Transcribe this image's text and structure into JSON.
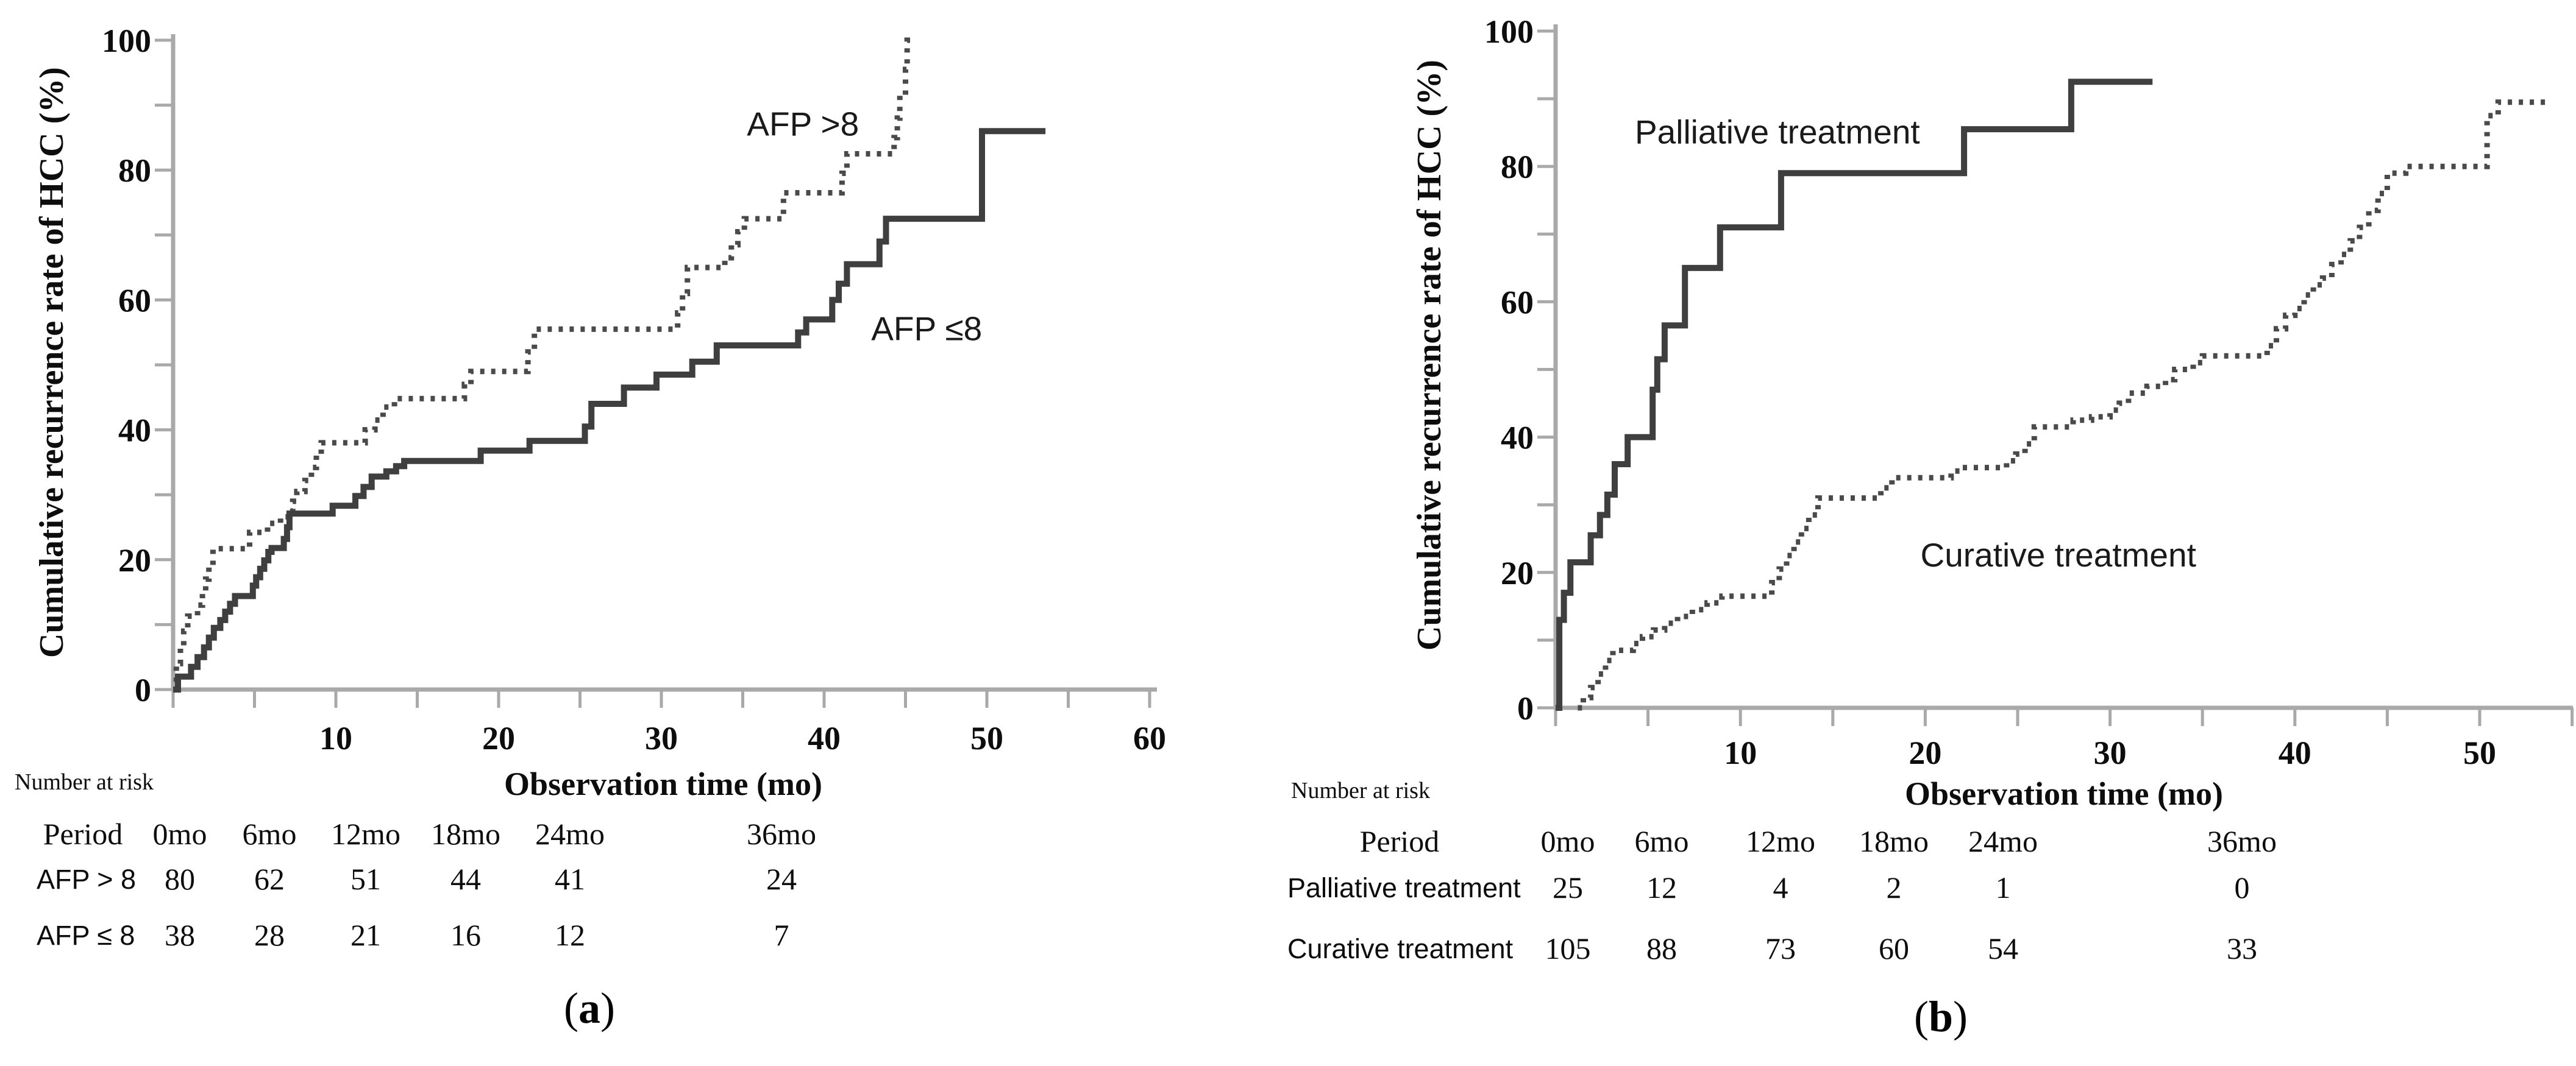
{
  "chart_data": [
    {
      "type": "line",
      "subtype": "kaplan-meier-step",
      "panel": "a",
      "ylabel": "Cumulative recurrence rate of HCC (%)",
      "xlabel": "Observation time (mo)",
      "xlim": [
        0,
        60.5
      ],
      "ylim": [
        0,
        100
      ],
      "x_ticks": [
        10,
        20,
        30,
        40,
        50,
        60
      ],
      "x_minor_ticks": [
        0,
        5,
        15,
        25,
        35,
        45,
        55
      ],
      "y_ticks": [
        0,
        20,
        40,
        60,
        80,
        100
      ],
      "y_minor_ticks": [
        10,
        30,
        50,
        70,
        90
      ],
      "grid": false,
      "legend": "inline-labels",
      "axis_color": "#a9a9a9",
      "series": [
        {
          "name": "AFP >8",
          "style": "dotted",
          "color": "#4a4a4a",
          "points": [
            [
              0,
              0
            ],
            [
              0.2,
              4
            ],
            [
              0.45,
              6.5
            ],
            [
              0.65,
              9
            ],
            [
              0.9,
              11.3
            ],
            [
              1.5,
              13
            ],
            [
              1.8,
              15
            ],
            [
              2,
              17
            ],
            [
              2.2,
              19
            ],
            [
              2.45,
              21.7
            ],
            [
              4.7,
              24.2
            ],
            [
              5.8,
              25.6
            ],
            [
              6.6,
              26.6
            ],
            [
              7.1,
              27.5
            ],
            [
              7.35,
              29
            ],
            [
              7.6,
              30.5
            ],
            [
              8.1,
              32.2
            ],
            [
              8.5,
              34.2
            ],
            [
              8.8,
              36.2
            ],
            [
              9.1,
              38
            ],
            [
              11.8,
              40
            ],
            [
              12.4,
              41.5
            ],
            [
              12.9,
              43.5
            ],
            [
              13.6,
              44.8
            ],
            [
              17.9,
              47
            ],
            [
              18.3,
              49
            ],
            [
              21.8,
              52
            ],
            [
              22.2,
              55.5
            ],
            [
              31,
              58
            ],
            [
              31.3,
              61
            ],
            [
              31.6,
              65
            ],
            [
              33.9,
              66.5
            ],
            [
              34.3,
              68.5
            ],
            [
              34.7,
              70.5
            ],
            [
              35.1,
              72.5
            ],
            [
              37.5,
              76.5
            ],
            [
              41.1,
              79.5
            ],
            [
              41.4,
              82.5
            ],
            [
              44.3,
              85
            ],
            [
              44.5,
              88
            ],
            [
              44.65,
              91.5
            ],
            [
              45,
              95.5
            ],
            [
              45.1,
              100
            ],
            [
              45.5,
              100
            ]
          ]
        },
        {
          "name": "AFP ≤8",
          "style": "solid",
          "color": "#3f3f3f",
          "points": [
            [
              0,
              0
            ],
            [
              0.3,
              2
            ],
            [
              1.1,
              3.5
            ],
            [
              1.5,
              5
            ],
            [
              1.9,
              6.5
            ],
            [
              2.2,
              8
            ],
            [
              2.5,
              9.5
            ],
            [
              2.9,
              10.7
            ],
            [
              3.2,
              12
            ],
            [
              3.5,
              13.2
            ],
            [
              3.8,
              14.4
            ],
            [
              4.9,
              16
            ],
            [
              5.1,
              17.3
            ],
            [
              5.35,
              18.6
            ],
            [
              5.6,
              19.9
            ],
            [
              5.85,
              21.2
            ],
            [
              6.05,
              21.8
            ],
            [
              6.8,
              23.2
            ],
            [
              7,
              25
            ],
            [
              7.15,
              27.1
            ],
            [
              9.8,
              28.3
            ],
            [
              11.2,
              29.8
            ],
            [
              11.7,
              31.2
            ],
            [
              12.2,
              32.8
            ],
            [
              13.1,
              33.6
            ],
            [
              13.7,
              34.4
            ],
            [
              14.2,
              35.2
            ],
            [
              18.9,
              36.8
            ],
            [
              21.9,
              38.3
            ],
            [
              25.3,
              40.5
            ],
            [
              25.7,
              44
            ],
            [
              27.7,
              46.5
            ],
            [
              29.7,
              48.5
            ],
            [
              31.9,
              50.5
            ],
            [
              33.4,
              53
            ],
            [
              38.4,
              55
            ],
            [
              38.9,
              57
            ],
            [
              40.5,
              60
            ],
            [
              40.9,
              62.5
            ],
            [
              41.4,
              65.5
            ],
            [
              43.4,
              69
            ],
            [
              43.8,
              72.5
            ],
            [
              49.7,
              86
            ],
            [
              53.6,
              86
            ]
          ]
        }
      ],
      "annotations": [
        {
          "text": "AFP >8",
          "x": 38.7,
          "y": 87
        },
        {
          "text": "AFP ≤8",
          "x": 46.3,
          "y": 55.5
        }
      ]
    },
    {
      "type": "line",
      "subtype": "kaplan-meier-step",
      "panel": "b",
      "ylabel": "Cumulative recurrence rate of HCC (%)",
      "xlabel": "Observation time (mo)",
      "xlim": [
        0,
        55
      ],
      "ylim": [
        0,
        100
      ],
      "x_ticks": [
        10,
        20,
        30,
        40,
        50
      ],
      "x_minor_ticks": [
        0,
        5,
        15,
        25,
        35,
        45,
        55
      ],
      "y_ticks": [
        0,
        20,
        40,
        60,
        80,
        100
      ],
      "y_minor_ticks": [
        10,
        30,
        50,
        70,
        90
      ],
      "grid": false,
      "legend": "inline-labels",
      "axis_color": "#a9a9a9",
      "series": [
        {
          "name": "Palliative treatment",
          "style": "solid",
          "color": "#3f3f3f",
          "points": [
            [
              0,
              0
            ],
            [
              0.2,
              13
            ],
            [
              0.45,
              17
            ],
            [
              0.8,
              21.5
            ],
            [
              1.9,
              25.5
            ],
            [
              2.4,
              28.5
            ],
            [
              2.8,
              31.5
            ],
            [
              3.2,
              36
            ],
            [
              3.9,
              40
            ],
            [
              5.25,
              47
            ],
            [
              5.5,
              51.5
            ],
            [
              5.9,
              56.5
            ],
            [
              7,
              65
            ],
            [
              8.9,
              71
            ],
            [
              12.2,
              79
            ],
            [
              22.1,
              85.5
            ],
            [
              27.9,
              92.5
            ],
            [
              32.3,
              92.5
            ]
          ]
        },
        {
          "name": "Curative treatment",
          "style": "dotted",
          "color": "#4a4a4a",
          "points": [
            [
              1.2,
              0
            ],
            [
              1.5,
              1.5
            ],
            [
              1.9,
              3
            ],
            [
              2.3,
              5
            ],
            [
              2.7,
              7
            ],
            [
              3.1,
              8.5
            ],
            [
              4.2,
              9.5
            ],
            [
              4.7,
              10.5
            ],
            [
              5.3,
              11.5
            ],
            [
              5.9,
              12.5
            ],
            [
              6.6,
              13.5
            ],
            [
              7.4,
              14.5
            ],
            [
              8.2,
              15.5
            ],
            [
              9,
              16.5
            ],
            [
              11.7,
              18.5
            ],
            [
              12.1,
              20.5
            ],
            [
              12.5,
              22.5
            ],
            [
              12.9,
              24.5
            ],
            [
              13.3,
              26.5
            ],
            [
              13.7,
              28.5
            ],
            [
              14.2,
              31
            ],
            [
              17.6,
              32.5
            ],
            [
              18.2,
              34
            ],
            [
              21.4,
              35
            ],
            [
              22,
              35.5
            ],
            [
              24.4,
              36.5
            ],
            [
              24.9,
              37.5
            ],
            [
              25.4,
              39
            ],
            [
              25.9,
              41.5
            ],
            [
              28,
              42.5
            ],
            [
              29,
              43
            ],
            [
              30,
              44
            ],
            [
              30.5,
              45
            ],
            [
              31,
              46.5
            ],
            [
              32,
              47.5
            ],
            [
              33,
              48.5
            ],
            [
              33.5,
              50
            ],
            [
              34.5,
              51
            ],
            [
              35,
              52
            ],
            [
              38.5,
              53.5
            ],
            [
              39,
              56
            ],
            [
              39.5,
              58
            ],
            [
              40,
              59
            ],
            [
              40.5,
              61
            ],
            [
              41,
              62.5
            ],
            [
              41.5,
              63.5
            ],
            [
              42,
              65.5
            ],
            [
              42.5,
              67
            ],
            [
              43,
              69
            ],
            [
              43.5,
              71
            ],
            [
              44,
              73.5
            ],
            [
              44.5,
              76
            ],
            [
              45,
              79
            ],
            [
              46,
              80
            ],
            [
              50.4,
              87.5
            ],
            [
              51,
              89.5
            ],
            [
              53.6,
              89.5
            ]
          ]
        }
      ],
      "annotations": [
        {
          "text": "Palliative treatment",
          "x": 12,
          "y": 85
        },
        {
          "text": "Curative treatment",
          "x": 27.2,
          "y": 22.5
        }
      ]
    }
  ],
  "panels": [
    {
      "caption_prefix": "(",
      "caption_letter": "a",
      "caption_suffix": ")",
      "number_at_risk_label": "Number at risk",
      "risk_table": {
        "header": [
          "Period",
          "0mo",
          "6mo",
          "12mo",
          "18mo",
          "24mo",
          "36mo"
        ],
        "rows": [
          {
            "label": "AFP > 8",
            "values": [
              "80",
              "62",
              "51",
              "44",
              "41",
              "24"
            ]
          },
          {
            "label": "AFP ≤ 8",
            "values": [
              "38",
              "28",
              "21",
              "16",
              "12",
              "7"
            ]
          }
        ]
      }
    },
    {
      "caption_prefix": "(",
      "caption_letter": "b",
      "caption_suffix": ")",
      "number_at_risk_label": "Number at risk",
      "risk_table": {
        "header": [
          "Period",
          "0mo",
          "6mo",
          "12mo",
          "18mo",
          "24mo",
          "36mo"
        ],
        "rows": [
          {
            "label": "Palliative treatment",
            "values": [
              "25",
              "12",
              "4",
              "2",
              "1",
              "0"
            ]
          },
          {
            "label": "Curative treatment",
            "values": [
              "105",
              "88",
              "73",
              "60",
              "54",
              "33"
            ]
          }
        ]
      }
    }
  ]
}
